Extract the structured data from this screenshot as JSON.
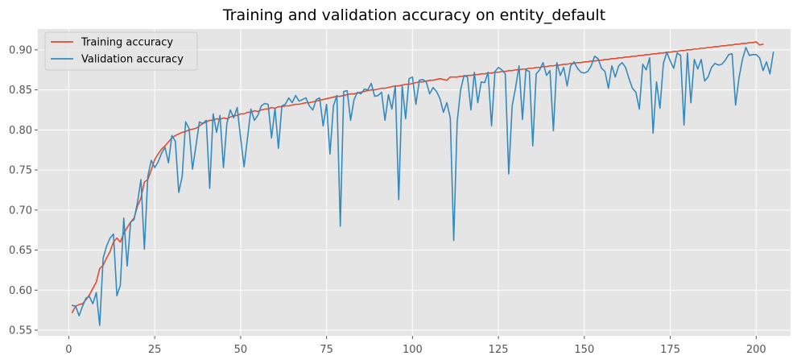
{
  "chart_data": {
    "type": "line",
    "title": "Training and validation accuracy on entity_default",
    "xlabel": "",
    "ylabel": "",
    "xlim": [
      -9,
      210
    ],
    "ylim": [
      0.543,
      0.926
    ],
    "x_ticks": [
      0,
      25,
      50,
      75,
      100,
      125,
      150,
      175,
      200
    ],
    "y_ticks": [
      0.55,
      0.6,
      0.65,
      0.7,
      0.75,
      0.8,
      0.85,
      0.9
    ],
    "y_tick_labels": [
      "0.55",
      "0.60",
      "0.65",
      "0.70",
      "0.75",
      "0.80",
      "0.85",
      "0.90"
    ],
    "grid": true,
    "legend_position": "top-left",
    "style": "ggplot",
    "x_start": 1,
    "series": [
      {
        "name": "Training accuracy",
        "color": "#E24A33",
        "values": [
          0.572,
          0.58,
          0.582,
          0.583,
          0.588,
          0.594,
          0.602,
          0.61,
          0.627,
          0.631,
          0.64,
          0.648,
          0.66,
          0.665,
          0.66,
          0.671,
          0.678,
          0.685,
          0.69,
          0.705,
          0.715,
          0.735,
          0.738,
          0.75,
          0.763,
          0.77,
          0.776,
          0.78,
          0.785,
          0.79,
          0.793,
          0.795,
          0.797,
          0.798,
          0.8,
          0.801,
          0.802,
          0.805,
          0.808,
          0.81,
          0.812,
          0.812,
          0.814,
          0.813,
          0.815,
          0.814,
          0.816,
          0.818,
          0.818,
          0.82,
          0.82,
          0.822,
          0.822,
          0.824,
          0.823,
          0.825,
          0.826,
          0.826,
          0.828,
          0.827,
          0.829,
          0.829,
          0.83,
          0.83,
          0.831,
          0.832,
          0.832,
          0.833,
          0.834,
          0.834,
          0.835,
          0.836,
          0.837,
          0.838,
          0.839,
          0.84,
          0.841,
          0.842,
          0.842,
          0.843,
          0.844,
          0.845,
          0.845,
          0.846,
          0.847,
          0.848,
          0.849,
          0.85,
          0.85,
          0.851,
          0.852,
          0.852,
          0.853,
          0.854,
          0.855,
          0.855,
          0.856,
          0.857,
          0.857,
          0.858,
          0.859,
          0.86,
          0.86,
          0.861,
          0.862,
          0.862,
          0.863,
          0.864,
          0.863,
          0.862,
          0.866,
          0.866,
          0.866,
          0.867,
          0.867,
          0.868,
          0.868,
          0.869,
          0.869,
          0.87,
          0.87,
          0.871,
          0.871,
          0.872,
          0.872,
          0.873,
          0.873,
          0.874,
          0.874,
          0.875,
          0.875,
          0.876,
          0.876,
          0.877,
          0.877,
          0.878,
          0.878,
          0.879,
          0.879,
          0.88,
          0.88,
          0.881,
          0.881,
          0.882,
          0.882,
          0.883,
          0.883,
          0.884,
          0.884,
          0.885,
          0.885,
          0.886,
          0.886,
          0.887,
          0.887,
          0.888,
          0.888,
          0.889,
          0.889,
          0.89,
          0.89,
          0.891,
          0.891,
          0.892,
          0.892,
          0.893,
          0.893,
          0.894,
          0.894,
          0.895,
          0.895,
          0.896,
          0.896,
          0.897,
          0.897,
          0.898,
          0.898,
          0.899,
          0.899,
          0.9,
          0.9,
          0.901,
          0.901,
          0.902,
          0.902,
          0.903,
          0.903,
          0.904,
          0.904,
          0.905,
          0.905,
          0.906,
          0.906,
          0.907,
          0.907,
          0.908,
          0.908,
          0.909,
          0.909,
          0.91,
          0.906,
          0.907
        ]
      },
      {
        "name": "Validation accuracy",
        "color": "#348ABD",
        "values": [
          0.581,
          0.58,
          0.568,
          0.58,
          0.59,
          0.592,
          0.583,
          0.597,
          0.556,
          0.64,
          0.655,
          0.665,
          0.67,
          0.593,
          0.606,
          0.69,
          0.63,
          0.685,
          0.688,
          0.71,
          0.738,
          0.651,
          0.742,
          0.762,
          0.753,
          0.76,
          0.771,
          0.778,
          0.759,
          0.793,
          0.786,
          0.722,
          0.742,
          0.81,
          0.802,
          0.751,
          0.78,
          0.81,
          0.808,
          0.812,
          0.727,
          0.82,
          0.797,
          0.818,
          0.753,
          0.808,
          0.825,
          0.815,
          0.828,
          0.79,
          0.754,
          0.79,
          0.826,
          0.812,
          0.818,
          0.83,
          0.833,
          0.832,
          0.79,
          0.827,
          0.777,
          0.83,
          0.832,
          0.84,
          0.834,
          0.843,
          0.836,
          0.838,
          0.84,
          0.83,
          0.825,
          0.838,
          0.84,
          0.805,
          0.832,
          0.77,
          0.83,
          0.843,
          0.68,
          0.848,
          0.849,
          0.812,
          0.838,
          0.847,
          0.845,
          0.851,
          0.85,
          0.858,
          0.842,
          0.843,
          0.847,
          0.812,
          0.844,
          0.826,
          0.855,
          0.713,
          0.855,
          0.814,
          0.864,
          0.866,
          0.832,
          0.862,
          0.863,
          0.86,
          0.845,
          0.853,
          0.848,
          0.839,
          0.822,
          0.834,
          0.815,
          0.662,
          0.81,
          0.85,
          0.868,
          0.866,
          0.825,
          0.872,
          0.834,
          0.86,
          0.859,
          0.872,
          0.805,
          0.873,
          0.878,
          0.875,
          0.87,
          0.745,
          0.83,
          0.853,
          0.88,
          0.813,
          0.875,
          0.873,
          0.78,
          0.87,
          0.875,
          0.884,
          0.868,
          0.874,
          0.799,
          0.884,
          0.868,
          0.878,
          0.855,
          0.88,
          0.885,
          0.877,
          0.872,
          0.871,
          0.873,
          0.88,
          0.892,
          0.889,
          0.877,
          0.873,
          0.852,
          0.88,
          0.866,
          0.88,
          0.884,
          0.878,
          0.864,
          0.852,
          0.847,
          0.826,
          0.882,
          0.875,
          0.89,
          0.796,
          0.86,
          0.827,
          0.883,
          0.897,
          0.886,
          0.877,
          0.896,
          0.893,
          0.806,
          0.896,
          0.834,
          0.888,
          0.876,
          0.888,
          0.861,
          0.866,
          0.878,
          0.883,
          0.881,
          0.882,
          0.887,
          0.894,
          0.895,
          0.831,
          0.865,
          0.888,
          0.903,
          0.893,
          0.894,
          0.894,
          0.89,
          0.874,
          0.885,
          0.87,
          0.897
        ]
      }
    ]
  }
}
